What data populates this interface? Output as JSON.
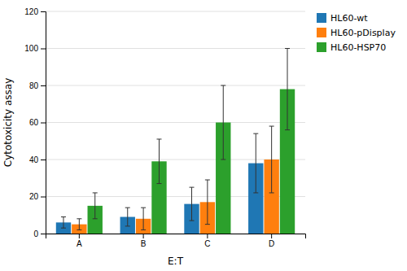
{
  "chart_data": {
    "type": "bar",
    "categories": [
      "A",
      "B",
      "C",
      "D"
    ],
    "series": [
      {
        "name": "HL60-wt",
        "values": [
          6,
          9,
          16,
          38
        ],
        "errors": [
          3,
          5,
          9,
          16
        ]
      },
      {
        "name": "HL60-pDisplay",
        "values": [
          5,
          8,
          17,
          40
        ],
        "errors": [
          3,
          6,
          12,
          18
        ]
      },
      {
        "name": "HL60-HSP70",
        "values": [
          15,
          39,
          60,
          78
        ],
        "errors": [
          7,
          12,
          20,
          22
        ]
      }
    ],
    "xlabel": "E:T",
    "ylabel": "Cytotoxicity assay",
    "ylim": [
      0,
      120
    ],
    "yticks": [
      0,
      20,
      40,
      60,
      80,
      100,
      120
    ],
    "grid": true,
    "legend": "upper right"
  }
}
